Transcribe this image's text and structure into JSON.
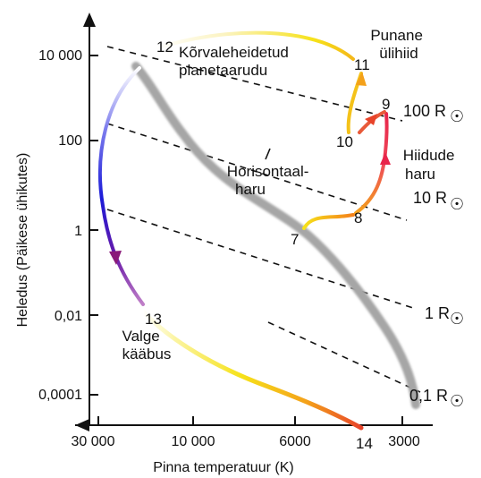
{
  "diagram": {
    "y_axis": {
      "title": "Heledus (Päikese ühikutes)",
      "ticks": [
        "10 000",
        "100",
        "1",
        "0,01",
        "0,0001"
      ]
    },
    "x_axis": {
      "title": "Pinna temperatuur (K)",
      "ticks": [
        "30 000",
        "10 000",
        "6000",
        "3000"
      ]
    },
    "stage_numbers": [
      "7",
      "8",
      "9",
      "10",
      "11",
      "12",
      "13",
      "14"
    ],
    "annotations": {
      "red_giants": [
        "Punane",
        "ülihiid"
      ],
      "giant_branch": [
        "Hiidude",
        "haru"
      ],
      "planetary_nebula": [
        "Kõrvaleheidetud",
        "planetaarudu"
      ],
      "horizontal_branch": [
        "Horisontaal-",
        "haru"
      ],
      "white_dwarf": [
        "Valge",
        "kääbus"
      ]
    },
    "radius_lines": [
      {
        "label": "100 R"
      },
      {
        "label": "10 R"
      },
      {
        "label": "1 R"
      },
      {
        "label": "0,1 R"
      }
    ],
    "sun_symbol": "☉",
    "colors": {
      "main_sequence": "#a6a6a6",
      "dashed_lines": "#111111",
      "axes": "#111111",
      "track_yellow": "#f6e21a",
      "track_orange": "#f4a11a",
      "track_red": "#e8244a",
      "track_blue": "#1b1bd8",
      "track_purple": "#8a1a9a"
    }
  }
}
